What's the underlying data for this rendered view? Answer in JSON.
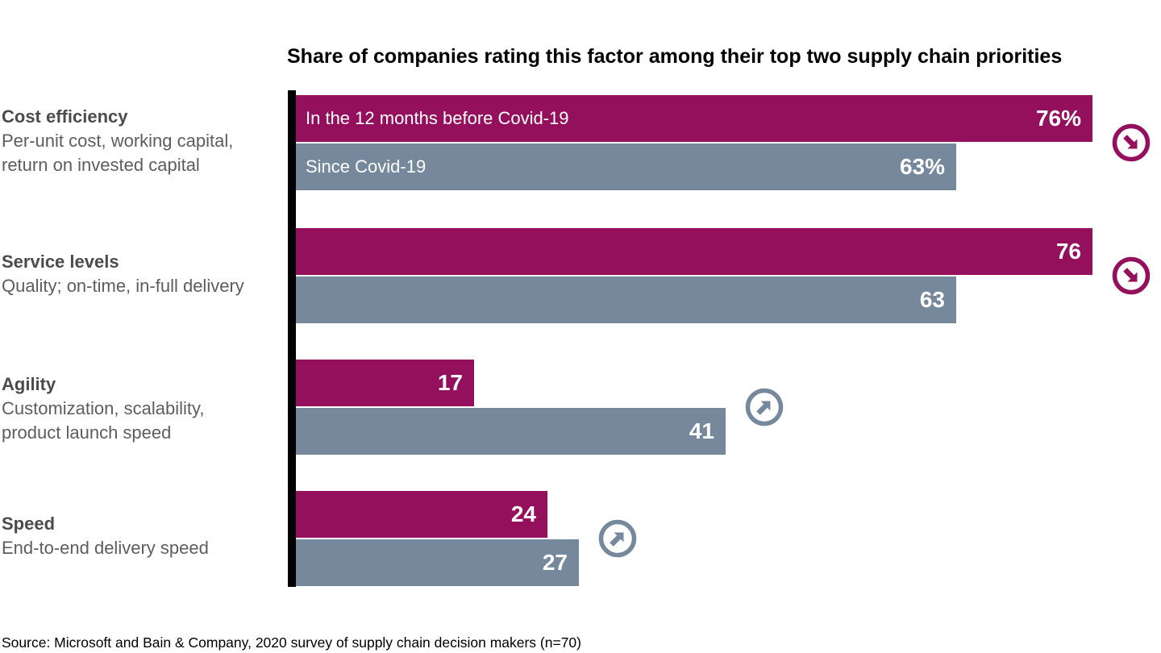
{
  "source": "Source: Microsoft and Bain & Company, 2020 survey of supply chain decision makers (n=70)",
  "colors": {
    "before": "#94105C",
    "since": "#76889B",
    "trend_down": "#94105C",
    "trend_up": "#76889B",
    "axis": "#000000",
    "title_text": "#000000",
    "category_name_text": "#4b4b4b",
    "category_desc_text": "#5d5d5d",
    "bar_label_text": "#ffffff"
  },
  "legend": {
    "before": "In the 12 months before Covid-19",
    "since": "Since Covid-19"
  },
  "chart_data": {
    "type": "bar",
    "orientation": "horizontal",
    "title": "Share of companies rating this factor among their top two supply chain priorities",
    "xlabel": "",
    "ylabel": "",
    "xlim": [
      0,
      82
    ],
    "grid": false,
    "legend_position": "inside-first-bar-pair",
    "categories": [
      "Cost efficiency",
      "Service levels",
      "Agility",
      "Speed"
    ],
    "series": [
      {
        "name": "In the 12 months before Covid-19",
        "values": [
          76,
          76,
          17,
          24
        ]
      },
      {
        "name": "Since Covid-19",
        "values": [
          63,
          63,
          41,
          27
        ]
      }
    ],
    "groups": [
      {
        "label": "Cost efficiency",
        "desc_lines": [
          "Per-unit cost, working capital,",
          "return on invested capital"
        ],
        "before": 76,
        "since": 63,
        "before_display": "76%",
        "since_display": "63%",
        "show_legend": true,
        "trend": "down"
      },
      {
        "label": "Service levels",
        "desc_lines": [
          "Quality; on-time, in-full delivery"
        ],
        "before": 76,
        "since": 63,
        "before_display": "76",
        "since_display": "63",
        "show_legend": false,
        "trend": "down"
      },
      {
        "label": "Agility",
        "desc_lines": [
          "Customization, scalability,",
          "product launch speed"
        ],
        "before": 17,
        "since": 41,
        "before_display": "17",
        "since_display": "41",
        "show_legend": false,
        "trend": "up"
      },
      {
        "label": "Speed",
        "desc_lines": [
          "End-to-end delivery speed"
        ],
        "before": 24,
        "since": 27,
        "before_display": "24",
        "since_display": "27",
        "show_legend": false,
        "trend": "up"
      }
    ]
  }
}
